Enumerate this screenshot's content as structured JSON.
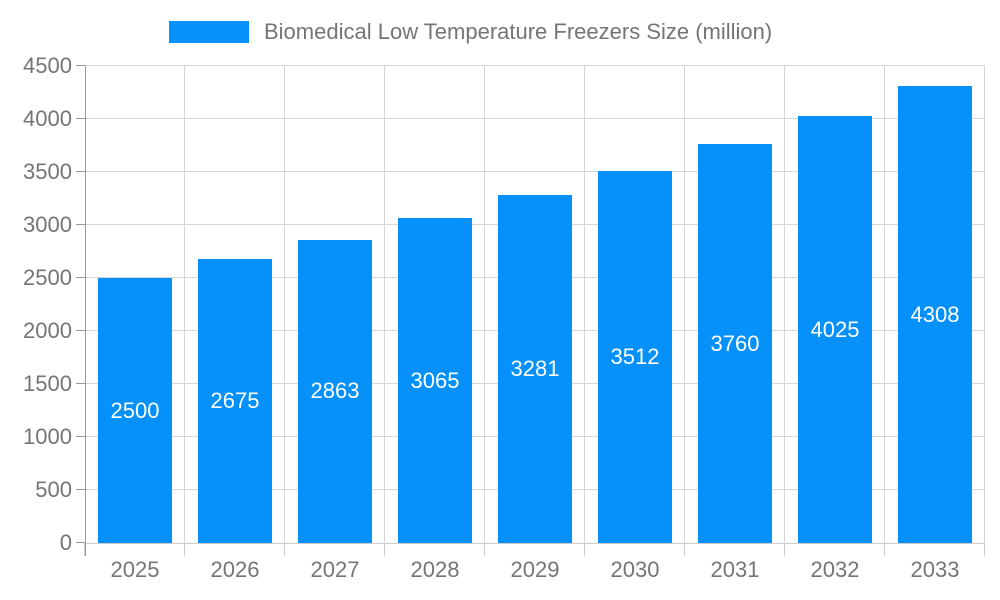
{
  "legend": {
    "label": "Biomedical Low Temperature Freezers Size (million)"
  },
  "chart_data": {
    "type": "bar",
    "title": "Biomedical Low Temperature Freezers Size (million)",
    "series_name": "Biomedical Low Temperature Freezers Size (million)",
    "categories": [
      "2025",
      "2026",
      "2027",
      "2028",
      "2029",
      "2030",
      "2031",
      "2032",
      "2033"
    ],
    "values": [
      2500,
      2675,
      2863,
      3065,
      3281,
      3512,
      3760,
      4025,
      4308
    ],
    "yticks": [
      0,
      500,
      1000,
      1500,
      2000,
      2500,
      3000,
      3500,
      4000,
      4500
    ],
    "ylim": [
      0,
      4500
    ],
    "xlabel": "",
    "ylabel": "",
    "grid": true,
    "legend_position": "top",
    "value_label_position": "inside-center"
  },
  "colors": {
    "bar": "#0690fa",
    "gridline": "#d6d6d6",
    "axis_line": "#999999",
    "x_tick": "#cccccc",
    "label_text": "#757575",
    "value_label": "#ffffff",
    "background": "#ffffff"
  }
}
